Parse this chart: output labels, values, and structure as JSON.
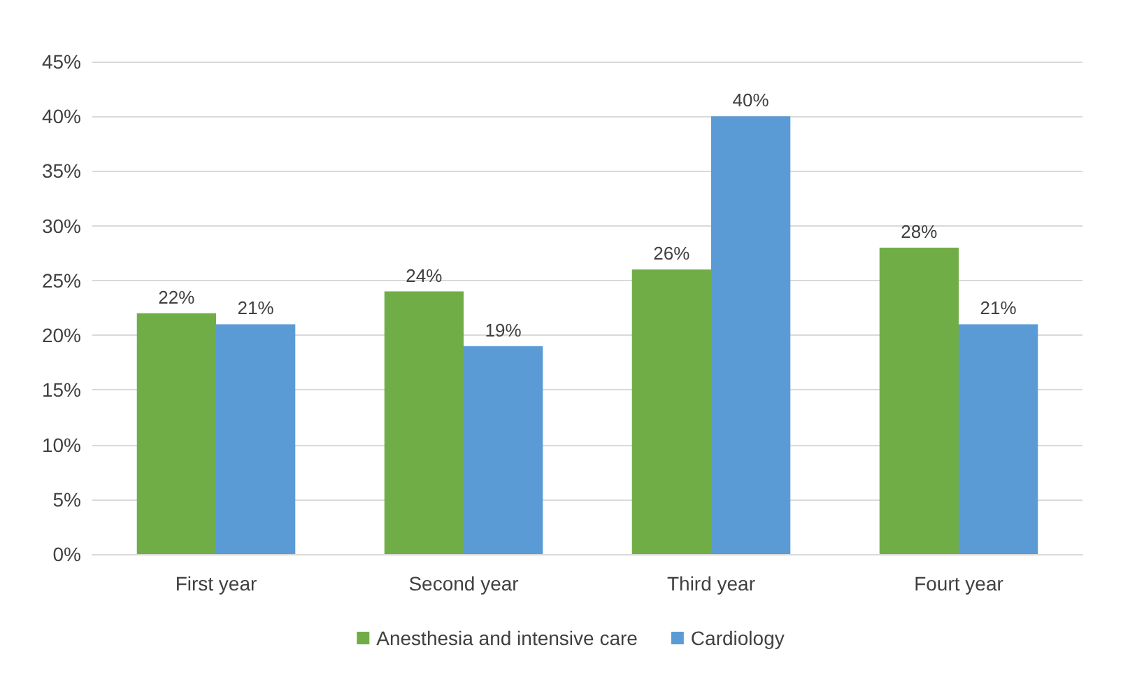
{
  "chart_data": {
    "type": "bar",
    "categories": [
      "First year",
      "Second year",
      "Third year",
      "Fourt year"
    ],
    "series": [
      {
        "name": "Anesthesia and intensive care",
        "color": "#70ad47",
        "values": [
          22,
          24,
          26,
          28
        ],
        "value_labels": [
          "22%",
          "24%",
          "26%",
          "28%"
        ]
      },
      {
        "name": "Cardiology",
        "color": "#5b9bd5",
        "values": [
          21,
          19,
          40,
          21
        ],
        "value_labels": [
          "21%",
          "19%",
          "40%",
          "21%"
        ]
      }
    ],
    "ylim": [
      0,
      45
    ],
    "yticks": [
      {
        "value": 0,
        "label": "0%"
      },
      {
        "value": 5,
        "label": "5%"
      },
      {
        "value": 10,
        "label": "10%"
      },
      {
        "value": 15,
        "label": "15%"
      },
      {
        "value": 20,
        "label": "20%"
      },
      {
        "value": 25,
        "label": "25%"
      },
      {
        "value": 30,
        "label": "30%"
      },
      {
        "value": 35,
        "label": "35%"
      },
      {
        "value": 40,
        "label": "40%"
      },
      {
        "value": 45,
        "label": "45%"
      }
    ],
    "grid": "y",
    "legend": "bottom"
  }
}
